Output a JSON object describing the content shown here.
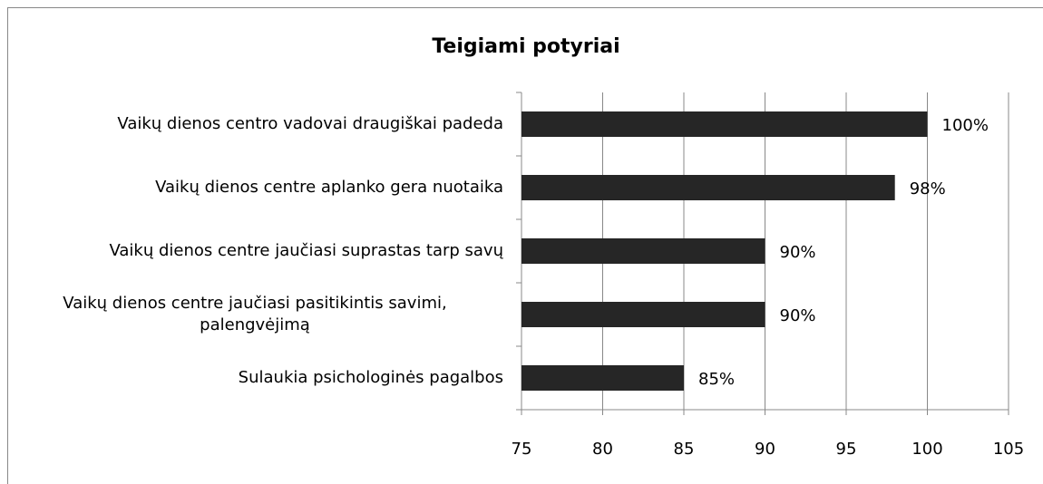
{
  "chart_data": {
    "type": "bar",
    "orientation": "horizontal",
    "title": "Teigiami potyriai",
    "categories": [
      "Vaikų dienos centro vadovai draugiškai padeda",
      "Vaikų dienos centre aplanko gera nuotaika",
      "Vaikų dienos centre jaučiasi suprastas tarp savų",
      "Vaikų dienos centre jaučiasi pasitikintis savimi, palengvėjimą",
      "Sulaukia psichologinės pagalbos"
    ],
    "values": [
      100,
      98,
      90,
      90,
      85
    ],
    "value_labels": [
      "100%",
      "98%",
      "90%",
      "90%",
      "85%"
    ],
    "color": "#262626",
    "xlim": [
      75,
      105
    ],
    "xticks": [
      75,
      80,
      85,
      90,
      95,
      100,
      105
    ],
    "grid": true
  }
}
